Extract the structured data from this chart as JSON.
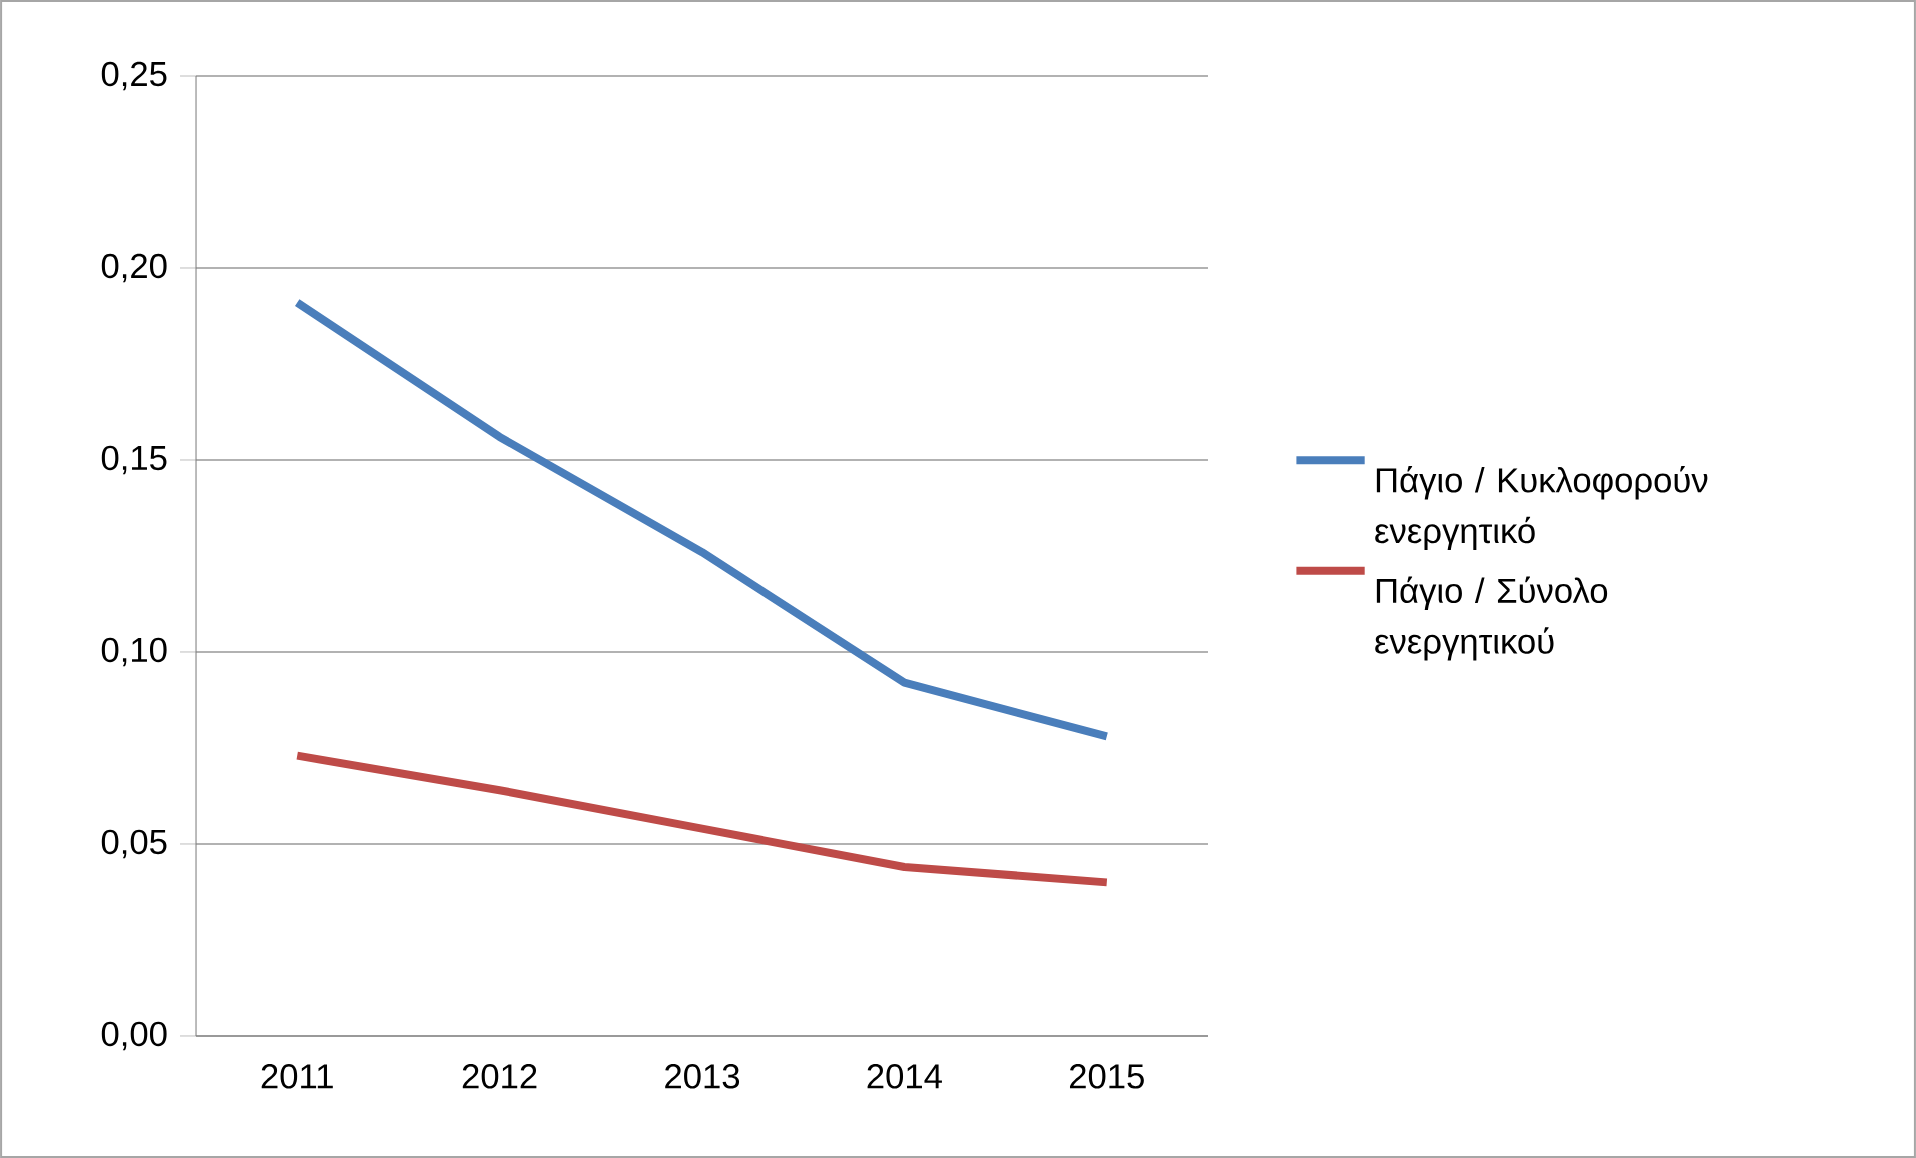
{
  "chart_data": {
    "type": "line",
    "categories": [
      "2011",
      "2012",
      "2013",
      "2014",
      "2015"
    ],
    "series": [
      {
        "name": "Πάγιο / Κυκλοφορούν ενεργητικό",
        "color": "#4a7ebb",
        "values": [
          0.191,
          0.156,
          0.126,
          0.092,
          0.078
        ]
      },
      {
        "name": "Πάγιο / Σύνολο ενεργητικού",
        "color": "#be4b48",
        "values": [
          0.073,
          0.064,
          0.054,
          0.044,
          0.04
        ]
      }
    ],
    "ylim": [
      0,
      0.25
    ],
    "yticks": [
      {
        "value": 0,
        "label": "0,00"
      },
      {
        "value": 0.05,
        "label": "0,05"
      },
      {
        "value": 0.1,
        "label": "0,10"
      },
      {
        "value": 0.15,
        "label": "0,15"
      },
      {
        "value": 0.2,
        "label": "0,20"
      },
      {
        "value": 0.25,
        "label": "0,25"
      }
    ],
    "grid": "y",
    "legend": "right",
    "marker": "none",
    "line_style": "solid"
  }
}
